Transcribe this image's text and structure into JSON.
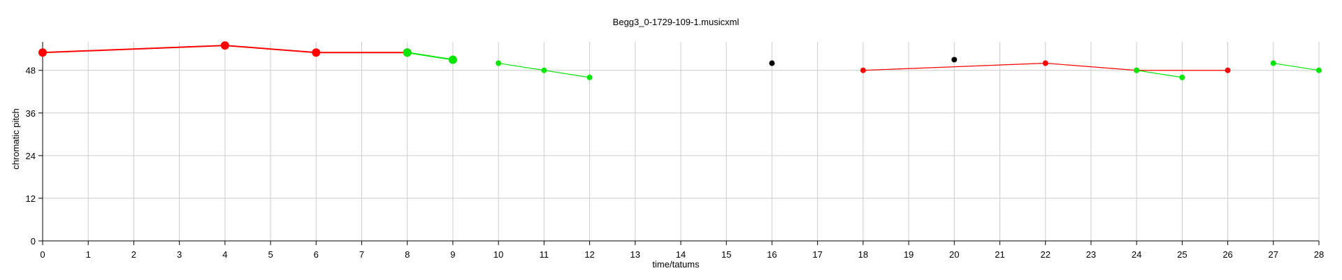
{
  "chart_data": {
    "type": "line",
    "title": "Begg3_0-1729-109-1.musicxml",
    "xlabel": "time/tatums",
    "ylabel": "chromatic pitch",
    "xlim": [
      0,
      28
    ],
    "ylim": [
      0,
      56
    ],
    "xticks": [
      0,
      1,
      2,
      3,
      4,
      5,
      6,
      7,
      8,
      9,
      10,
      11,
      12,
      13,
      14,
      15,
      16,
      17,
      18,
      19,
      20,
      21,
      22,
      23,
      24,
      25,
      26,
      27,
      28
    ],
    "yticks": [
      0,
      12,
      24,
      36,
      48
    ],
    "grid": true,
    "colors": {
      "red": "#ff0000",
      "green": "#00e600",
      "black": "#000000",
      "grid": "#cccccc"
    },
    "series": [
      {
        "color": "red",
        "emphasis": "large",
        "points": [
          [
            0,
            53
          ],
          [
            4,
            55
          ],
          [
            6,
            53
          ],
          [
            8,
            53
          ]
        ]
      },
      {
        "color": "green",
        "emphasis": "large",
        "points": [
          [
            8,
            53
          ],
          [
            9,
            51
          ]
        ]
      },
      {
        "color": "green",
        "emphasis": "small",
        "points": [
          [
            10,
            50
          ],
          [
            11,
            48
          ],
          [
            12,
            46
          ]
        ]
      },
      {
        "color": "black",
        "emphasis": "small",
        "points": [
          [
            16,
            50
          ]
        ]
      },
      {
        "color": "black",
        "emphasis": "small",
        "points": [
          [
            20,
            51
          ]
        ]
      },
      {
        "color": "red",
        "emphasis": "small",
        "points": [
          [
            18,
            48
          ],
          [
            22,
            50
          ],
          [
            24,
            48
          ],
          [
            26,
            48
          ]
        ]
      },
      {
        "color": "green",
        "emphasis": "small",
        "points": [
          [
            24,
            48
          ],
          [
            25,
            46
          ]
        ]
      },
      {
        "color": "green",
        "emphasis": "small",
        "points": [
          [
            27,
            50
          ],
          [
            28,
            48
          ]
        ]
      }
    ]
  }
}
